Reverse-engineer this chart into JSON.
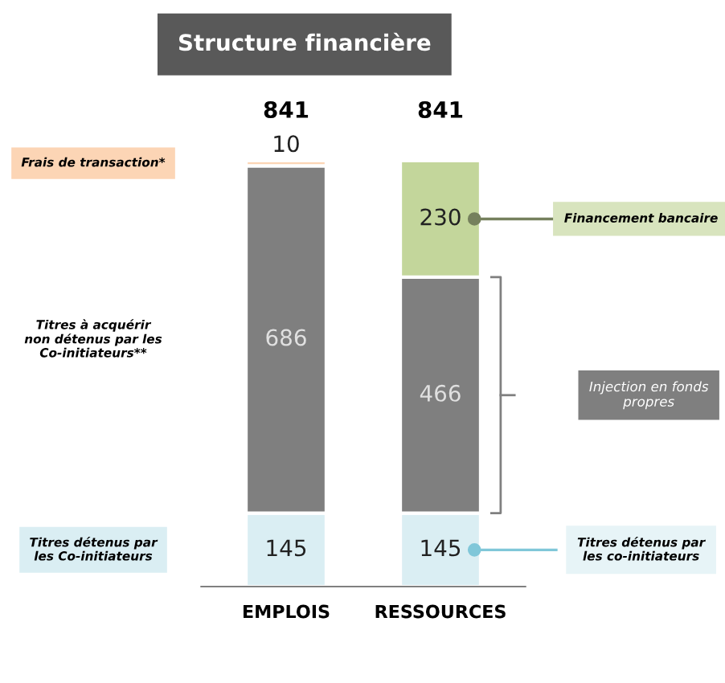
{
  "chart_data": {
    "type": "bar",
    "title": "Structure financière",
    "stacked": true,
    "data_labels": true,
    "grid": false,
    "categories": [
      "EMPLOIS",
      "RESSOURCES"
    ],
    "series": [
      {
        "values": [
          145,
          145
        ],
        "color": "#daeef3"
      },
      {
        "values": [
          686,
          466
        ],
        "color": "#7f7f7f"
      },
      {
        "values": [
          10,
          230
        ],
        "colors": [
          "#fcd5b5",
          "#c3d69b"
        ]
      }
    ],
    "totals": [
      "841",
      "841"
    ],
    "annotations": [
      "Frais de transaction*",
      "Titres à acquérir\nnon détenus par les\nCo-initiateurs**",
      "Titres détenus par\nles Co-initiateurs",
      "Financement bancaire",
      "Injection en fonds\npropres",
      "Titres détenus par\nles co-initiateurs"
    ]
  }
}
